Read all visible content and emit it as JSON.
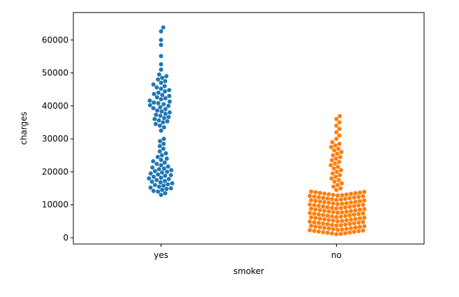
{
  "chart_data": {
    "type": "swarm",
    "x_label": "smoker",
    "y_label": "charges",
    "categories": [
      "yes",
      "no"
    ],
    "colors": [
      "#1f77b4",
      "#ff7f0e"
    ],
    "values": [
      [
        13000,
        13500,
        14000,
        14200,
        14500,
        14800,
        15000,
        15200,
        15500,
        15800,
        16000,
        16200,
        16500,
        16800,
        17000,
        17200,
        17500,
        17800,
        18000,
        18200,
        18500,
        18800,
        19000,
        19200,
        19500,
        19800,
        20000,
        20200,
        20500,
        20800,
        21000,
        21300,
        21600,
        22000,
        22400,
        22800,
        23200,
        23600,
        24000,
        24500,
        25000,
        25600,
        26200,
        27000,
        27800,
        28500,
        29300,
        30000,
        32500,
        33500,
        34000,
        34500,
        35000,
        35300,
        35600,
        36000,
        36300,
        36600,
        37000,
        37300,
        37600,
        38000,
        38300,
        38600,
        39000,
        39300,
        39600,
        40000,
        40200,
        40500,
        40800,
        41000,
        41300,
        41600,
        42000,
        42300,
        42600,
        43000,
        43300,
        43600,
        44000,
        44400,
        44800,
        45200,
        45600,
        46000,
        46500,
        47000,
        47500,
        48000,
        48500,
        49000,
        49500,
        51000,
        52600,
        55100,
        58500,
        60000,
        62600,
        63770
      ],
      [
        1100,
        1200,
        1300,
        1400,
        1500,
        1600,
        1700,
        1800,
        1900,
        2000,
        2100,
        2200,
        2300,
        2400,
        2500,
        2600,
        2700,
        2800,
        2900,
        3000,
        3100,
        3200,
        3300,
        3400,
        3500,
        3600,
        3700,
        3800,
        3900,
        4000,
        4100,
        4200,
        4300,
        4400,
        4500,
        4600,
        4700,
        4800,
        4900,
        5000,
        5100,
        5200,
        5300,
        5400,
        5500,
        5600,
        5700,
        5800,
        5900,
        6000,
        6100,
        6200,
        6300,
        6400,
        6500,
        6600,
        6700,
        6800,
        6900,
        7000,
        7100,
        7200,
        7300,
        7400,
        7500,
        7600,
        7700,
        7800,
        7900,
        8000,
        8100,
        8200,
        8300,
        8400,
        8500,
        8600,
        8700,
        8800,
        8900,
        9000,
        9100,
        9200,
        9300,
        9400,
        9500,
        9600,
        9700,
        9800,
        9900,
        10000,
        10100,
        10200,
        10300,
        10400,
        10500,
        10600,
        10700,
        10800,
        10900,
        11000,
        11100,
        11200,
        11300,
        11400,
        11500,
        11600,
        11700,
        11800,
        11900,
        12000,
        12100,
        12200,
        12300,
        12400,
        12500,
        12600,
        12700,
        12800,
        12900,
        13000,
        13100,
        13200,
        13300,
        13400,
        13500,
        13600,
        13700,
        13800,
        13900,
        14000,
        14500,
        15000,
        15500,
        16000,
        16500,
        17000,
        17500,
        18000,
        18500,
        19000,
        19500,
        20000,
        20500,
        21000,
        21500,
        22000,
        22500,
        23000,
        23500,
        24000,
        24500,
        25000,
        25500,
        26000,
        26500,
        27000,
        27500,
        28000,
        28500,
        29000,
        30000,
        31000,
        32000,
        33000,
        34000,
        35000,
        36000,
        36900
      ]
    ],
    "ylim": [
      -1900,
      68300
    ],
    "yticks": [
      0,
      10000,
      20000,
      30000,
      40000,
      50000,
      60000
    ]
  }
}
